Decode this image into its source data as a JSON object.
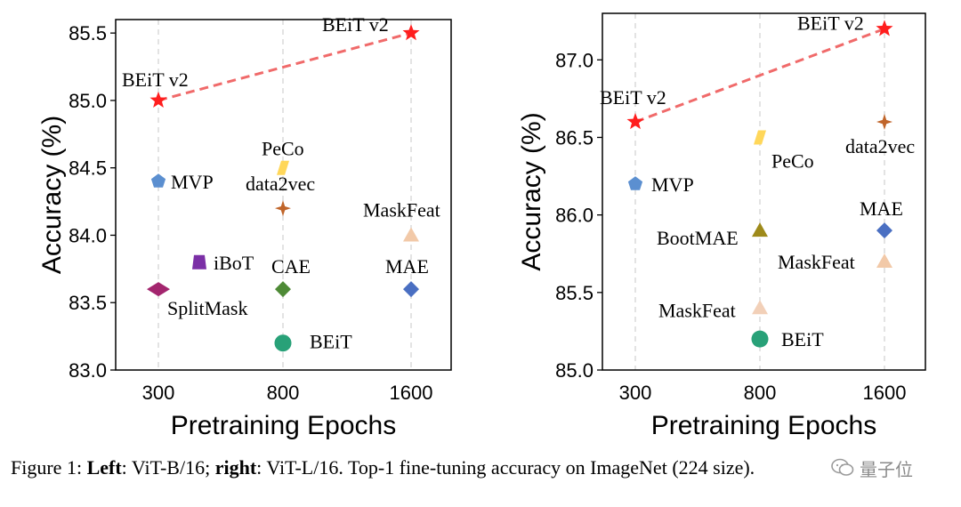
{
  "chart_data": [
    {
      "type": "scatter",
      "xlabel": "Pretraining Epochs",
      "ylabel": "Accuracy (%)",
      "x_ticks": [
        "300",
        "800",
        "1600"
      ],
      "y_ticks": [
        "83.0",
        "83.5",
        "84.0",
        "84.5",
        "85.0",
        "85.5"
      ],
      "ylim": [
        83.0,
        85.6
      ],
      "grid": "vertical dashed",
      "points": [
        {
          "name": "BEiT v2",
          "x": "300",
          "y": 85.0,
          "marker": "star",
          "color": "#ff1e1e"
        },
        {
          "name": "BEiT v2",
          "x": "1600",
          "y": 85.5,
          "marker": "star",
          "color": "#ff1e1e"
        },
        {
          "name": "MVP",
          "x": "300",
          "y": 84.4,
          "marker": "pentagon",
          "color": "#5b8fd0"
        },
        {
          "name": "PeCo",
          "x": "800",
          "y": 84.5,
          "marker": "parallelogram",
          "color": "#ffd75a"
        },
        {
          "name": "data2vec",
          "x": "800",
          "y": 84.2,
          "marker": "cross-star",
          "color": "#c0652a"
        },
        {
          "name": "MaskFeat",
          "x": "1600",
          "y": 84.0,
          "marker": "triangle",
          "color": "#f2c9a8"
        },
        {
          "name": "iBoT",
          "x": "400",
          "y": 83.8,
          "marker": "trapezoid",
          "color": "#7b2fa6"
        },
        {
          "name": "CAE",
          "x": "800",
          "y": 83.6,
          "marker": "diamond",
          "color": "#4e8a36"
        },
        {
          "name": "SplitMask",
          "x": "300",
          "y": 83.6,
          "marker": "wide-diamond",
          "color": "#a3256e"
        },
        {
          "name": "MAE",
          "x": "1600",
          "y": 83.6,
          "marker": "diamond",
          "color": "#4a6fc2"
        },
        {
          "name": "BEiT",
          "x": "800",
          "y": 83.2,
          "marker": "circle",
          "color": "#28a178"
        }
      ],
      "trend_line": {
        "from": "300",
        "to": "1600",
        "color": "#f06a6a",
        "style": "dashed"
      }
    },
    {
      "type": "scatter",
      "xlabel": "Pretraining Epochs",
      "ylabel": "Accuracy (%)",
      "x_ticks": [
        "300",
        "800",
        "1600"
      ],
      "y_ticks": [
        "85.0",
        "85.5",
        "86.0",
        "86.5",
        "87.0"
      ],
      "ylim": [
        85.0,
        87.3
      ],
      "grid": "vertical dashed",
      "points": [
        {
          "name": "BEiT v2",
          "x": "300",
          "y": 86.6,
          "marker": "star",
          "color": "#ff1e1e"
        },
        {
          "name": "BEiT v2",
          "x": "1600",
          "y": 87.2,
          "marker": "star",
          "color": "#ff1e1e"
        },
        {
          "name": "data2vec",
          "x": "1600",
          "y": 86.6,
          "marker": "cross-star",
          "color": "#c0652a"
        },
        {
          "name": "PeCo",
          "x": "800",
          "y": 86.5,
          "marker": "parallelogram",
          "color": "#ffd75a"
        },
        {
          "name": "MVP",
          "x": "300",
          "y": 86.2,
          "marker": "pentagon",
          "color": "#5b8fd0"
        },
        {
          "name": "MAE",
          "x": "1600",
          "y": 85.9,
          "marker": "diamond",
          "color": "#4a6fc2"
        },
        {
          "name": "BootMAE",
          "x": "800",
          "y": 85.9,
          "marker": "triangle",
          "color": "#9e8a1a"
        },
        {
          "name": "MaskFeat",
          "x": "1600",
          "y": 85.7,
          "marker": "triangle",
          "color": "#f2c9a8"
        },
        {
          "name": "MaskFeat",
          "x": "800",
          "y": 85.4,
          "marker": "triangle",
          "color": "#f2d0b8"
        },
        {
          "name": "BEiT",
          "x": "800",
          "y": 85.2,
          "marker": "circle",
          "color": "#28a178"
        }
      ],
      "trend_line": {
        "from": "300",
        "to": "1600",
        "color": "#f06a6a",
        "style": "dashed"
      }
    }
  ],
  "caption": {
    "figure_label": "Figure 1: ",
    "left_bold": "Left",
    "left_text": ": ViT-B/16; ",
    "right_bold": "right",
    "right_text": ": ViT-L/16. Top-1 fine-tuning accuracy on ImageNet (224 size)."
  },
  "watermark": {
    "text": "量子位",
    "icon": "wechat-icon"
  }
}
